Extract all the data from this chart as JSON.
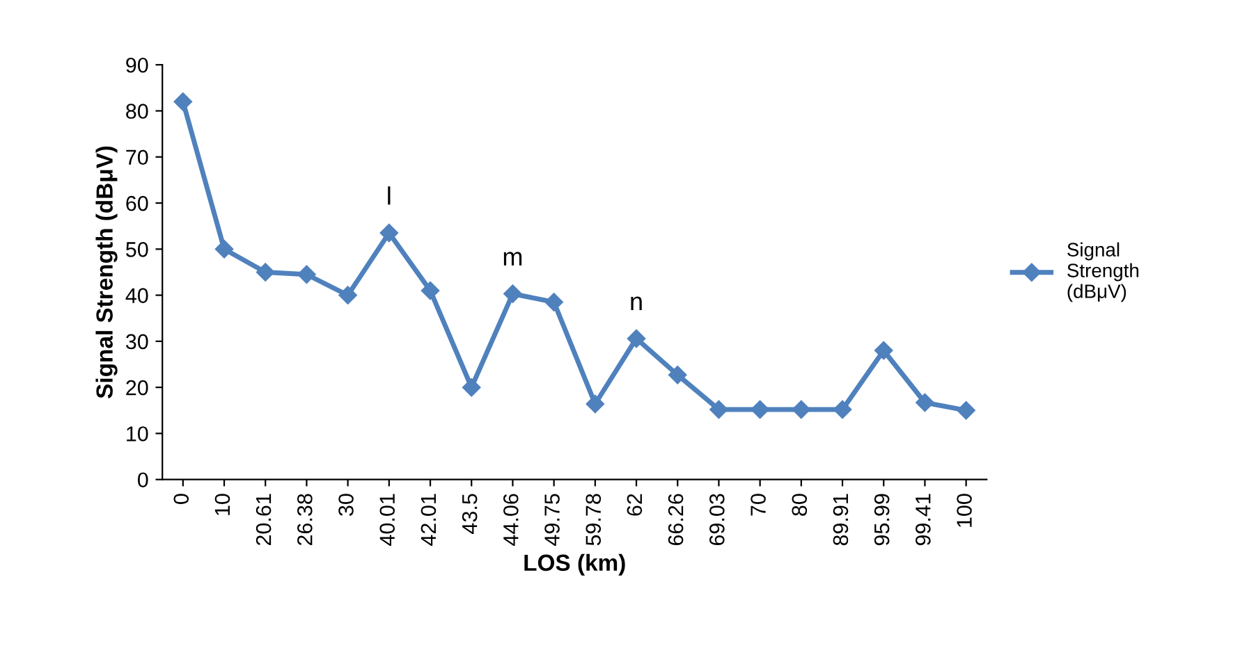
{
  "chart_data": {
    "type": "line",
    "xlabel": "LOS (km)",
    "ylabel": "Signal Strength (dBμV)",
    "categories": [
      "0",
      "10",
      "20.61",
      "26.38",
      "30",
      "40.01",
      "42.01",
      "43.5",
      "44.06",
      "49.75",
      "59.78",
      "62",
      "66.26",
      "69.03",
      "70",
      "80",
      "89.91",
      "95.99",
      "99.41",
      "100"
    ],
    "series": [
      {
        "name": "Signal Strength (dBμV)",
        "color": "#4f81bd",
        "values": [
          82,
          50,
          45,
          44.5,
          40,
          53.5,
          41,
          20,
          40.3,
          38.5,
          16.4,
          30.6,
          22.7,
          15.2,
          15.2,
          15.2,
          15.2,
          28,
          16.7,
          15
        ]
      }
    ],
    "ylim": [
      0,
      90
    ],
    "yticks": [
      0,
      10,
      20,
      30,
      40,
      50,
      60,
      70,
      80,
      90
    ],
    "annotations": [
      {
        "text": "l",
        "x": "40.01",
        "y": 53.5
      },
      {
        "text": "m",
        "x": "44.06",
        "y": 40.3
      },
      {
        "text": "n",
        "x": "62",
        "y": 30.6
      }
    ],
    "legend": "right",
    "grid": false,
    "marker": "diamond",
    "line_style": "solid"
  }
}
